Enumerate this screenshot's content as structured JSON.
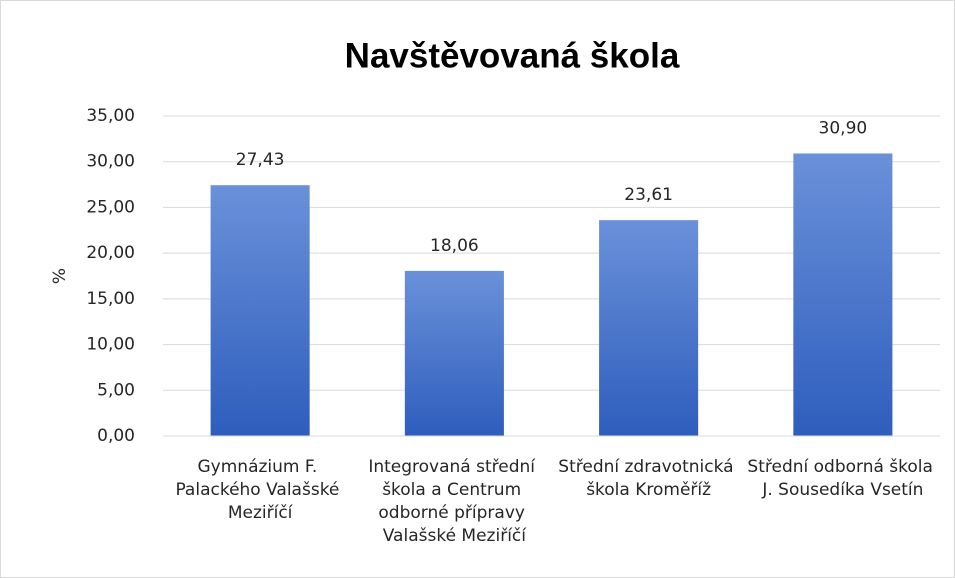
{
  "chart_data": {
    "type": "bar",
    "title": "Navštěvovaná škola",
    "y_label": "%",
    "categories": [
      "Gymnázium F. Palackého Valašské Meziříčí",
      "Integrovaná střední škola a Centrum odborné přípravy Valašské Meziříčí",
      "Střední zdravotnická škola Kroměříž",
      "Střední odborná škola J. Sousedíka Vsetín"
    ],
    "values": [
      27.43,
      18.06,
      23.61,
      30.9
    ],
    "value_labels": [
      "27,43",
      "18,06",
      "23,61",
      "30,90"
    ],
    "color": "#4472c4",
    "ylim": [
      0,
      35
    ],
    "yticks": [
      {
        "value": 0,
        "label": "0,00"
      },
      {
        "value": 5,
        "label": "5,00"
      },
      {
        "value": 10,
        "label": "10,00"
      },
      {
        "value": 15,
        "label": "15,00"
      },
      {
        "value": 20,
        "label": "20,00"
      },
      {
        "value": 25,
        "label": "25,00"
      },
      {
        "value": 30,
        "label": "30,00"
      },
      {
        "value": 35,
        "label": "35,00"
      }
    ],
    "grid": true
  }
}
